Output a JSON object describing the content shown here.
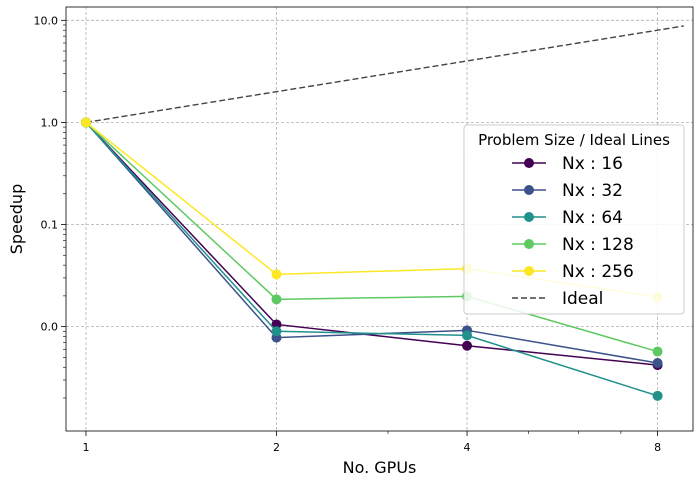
{
  "chart_data": {
    "type": "line",
    "title": "",
    "xlabel": "No. GPUs",
    "ylabel": "Speedup",
    "x_scale": "log2",
    "y_scale": "log10",
    "xlim": [
      0.93,
      9.1
    ],
    "ylim": [
      0.00095,
      13.5
    ],
    "x_ticks": [
      1,
      2,
      4,
      8
    ],
    "x_tick_labels": [
      "1",
      "2",
      "4",
      "8"
    ],
    "y_ticks": [
      0.01,
      0.1,
      1,
      10
    ],
    "y_tick_labels": [
      "0.0",
      "0.1",
      "1.0",
      "10.0"
    ],
    "grid": true,
    "legend": {
      "title": "Problem Size / Ideal Lines",
      "placement": "right"
    },
    "x": [
      1,
      2,
      4,
      8
    ],
    "series": [
      {
        "name": "Nx : 16",
        "color": "#440154",
        "values": [
          1.0,
          0.0105,
          0.0065,
          0.0042
        ]
      },
      {
        "name": "Nx : 32",
        "color": "#3b528b",
        "values": [
          1.0,
          0.0078,
          0.0092,
          0.0044
        ]
      },
      {
        "name": "Nx : 64",
        "color": "#21918c",
        "values": [
          1.0,
          0.009,
          0.0082,
          0.0021
        ]
      },
      {
        "name": "Nx : 128",
        "color": "#5ec962",
        "values": [
          1.0,
          0.0185,
          0.0198,
          0.0057
        ]
      },
      {
        "name": "Nx : 256",
        "color": "#fde725",
        "values": [
          1.0,
          0.0325,
          0.037,
          0.0195
        ]
      }
    ],
    "ideal": {
      "name": "Ideal",
      "color": "#444444",
      "x": [
        1,
        8.8
      ],
      "values": [
        1,
        8.8
      ]
    }
  }
}
